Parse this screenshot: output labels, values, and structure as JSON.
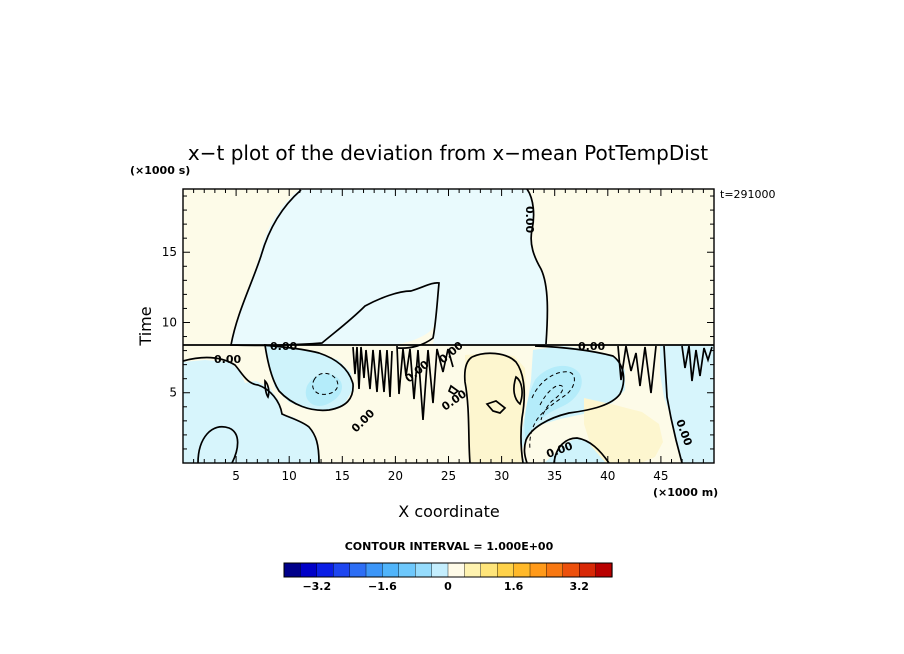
{
  "chart_data": {
    "type": "heatmap",
    "title": "x−t plot of the deviation from x−mean PotTempDist",
    "xlabel": "X coordinate",
    "ylabel": "Time",
    "x_unit": "(×1000 m)",
    "y_unit": "(×1000 s)",
    "time_note": "t=291000",
    "xlim": [
      0,
      50
    ],
    "ylim": [
      0,
      19.5
    ],
    "x_ticks": [
      5,
      10,
      15,
      20,
      25,
      30,
      35,
      40,
      45
    ],
    "y_ticks": [
      5,
      10,
      15
    ],
    "grid": false,
    "contour_interval_label": "CONTOUR INTERVAL = 1.000E+00",
    "contour_labels": [
      "0.00",
      "0.00",
      "0.00",
      "0.00",
      "0.00",
      "0.00",
      "0.00",
      "0.00",
      "0.00",
      "0.00"
    ],
    "colorbar": {
      "min": -4,
      "max": 4,
      "step": 0.4,
      "tick_labels": [
        "−3.2",
        "−1.6",
        "0",
        "1.6",
        "3.2"
      ],
      "tick_values": [
        -3.2,
        -1.6,
        0,
        1.6,
        3.2
      ]
    },
    "regions": [
      {
        "name": "upper-left negative",
        "x_range": [
          6,
          24
        ],
        "t_range": [
          8.6,
          19.5
        ],
        "value": -0.3
      },
      {
        "name": "upper-right positive",
        "x_range": [
          33,
          50
        ],
        "t_range": [
          8.6,
          19.5
        ],
        "value": 0.2
      },
      {
        "name": "left cool anomaly",
        "x_range": [
          0,
          8
        ],
        "t_range": [
          0,
          8.5
        ],
        "value": -0.6
      },
      {
        "name": "cool core near x=13",
        "x_range": [
          10,
          17
        ],
        "t_range": [
          3,
          8
        ],
        "value": -1.0
      },
      {
        "name": "warm band near x=30",
        "x_range": [
          27,
          33
        ],
        "t_range": [
          0,
          8.5
        ],
        "value": 0.6
      },
      {
        "name": "cool core near x=35",
        "x_range": [
          33,
          39
        ],
        "t_range": [
          0.5,
          7
        ],
        "value": -1.3
      },
      {
        "name": "warm region x=38-45",
        "x_range": [
          38,
          45
        ],
        "t_range": [
          0,
          7
        ],
        "value": 0.4
      }
    ]
  },
  "colors": {
    "colorbar": [
      "#00008a",
      "#0000c8",
      "#0a1ee6",
      "#1e46f0",
      "#2d6ef5",
      "#3c96f8",
      "#50b4fa",
      "#6ec8fc",
      "#96dcfd",
      "#c4eefe",
      "#eaf9ff",
      "#fffbe8",
      "#fff3b0",
      "#ffe57a",
      "#ffd24a",
      "#ffb92a",
      "#ff9a1a",
      "#f87812",
      "#ec500c",
      "#d82806",
      "#b80000"
    ],
    "warm_fill": "#fdfbe8",
    "cool_fill": "#e9fafd",
    "warm_light": "#fdf6cf",
    "cool_light": "#cff3fb",
    "cool_mid": "#b4ecfa"
  }
}
